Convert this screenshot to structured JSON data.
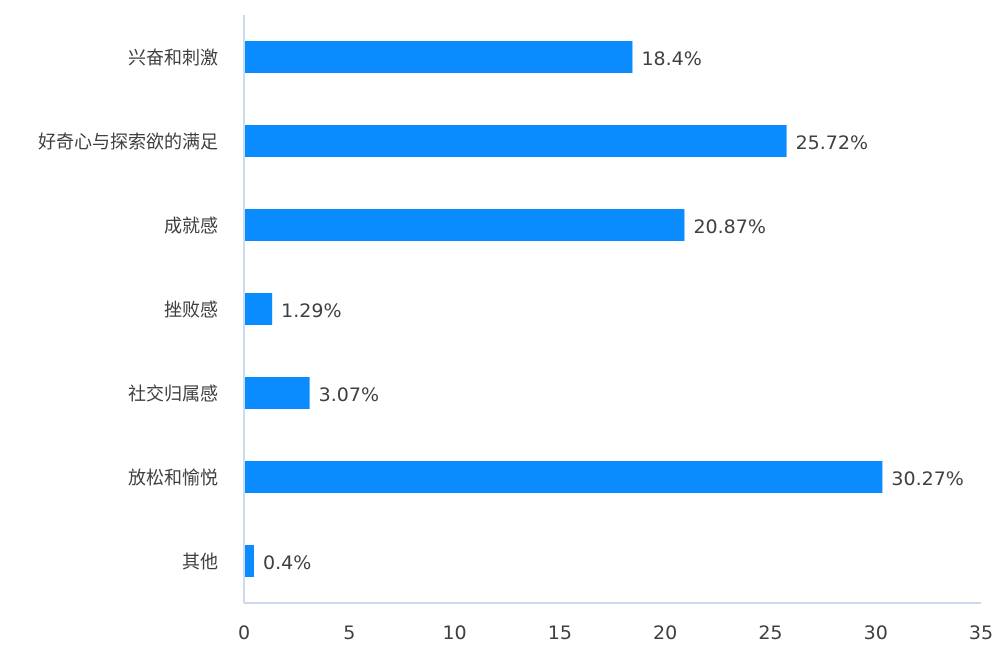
{
  "chart_data": {
    "type": "bar",
    "orientation": "horizontal",
    "title": "",
    "xlabel": "",
    "ylabel": "",
    "categories": [
      "兴奋和刺激",
      "好奇心与探索欲的满足",
      "成就感",
      "挫败感",
      "社交归属感",
      "放松和愉悦",
      "其他"
    ],
    "values": [
      18.4,
      25.72,
      20.87,
      1.29,
      3.07,
      30.27,
      0.4
    ],
    "data_labels": [
      "18.4%",
      "25.72%",
      "20.87%",
      "1.29%",
      "3.07%",
      "30.27%",
      "0.4%"
    ],
    "xlim": [
      0,
      35
    ],
    "xticks": [
      "0",
      "5",
      "10",
      "15",
      "20",
      "25",
      "30",
      "35"
    ],
    "grid": false,
    "bar_color": "#0A8CFF",
    "axis_color": "#CCDAF0"
  }
}
